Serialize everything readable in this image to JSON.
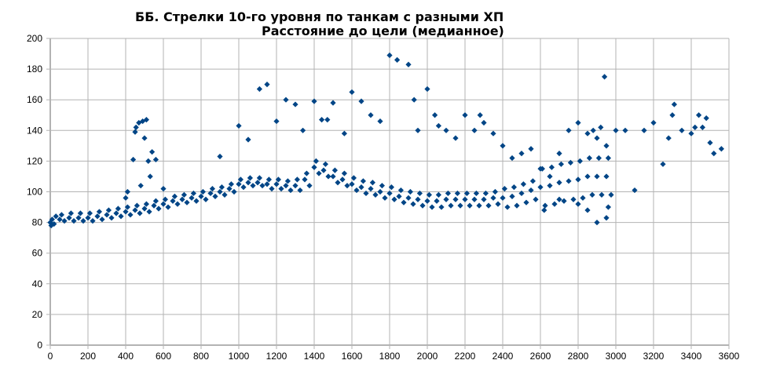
{
  "chart_data": {
    "type": "scatter",
    "title": "ББ. Стрелки 10-го уровня по танкам с разными ХП",
    "subtitle": "Расстояние до цели  (медианное)",
    "xlabel": "",
    "ylabel": "",
    "xlim": [
      0,
      3600
    ],
    "ylim": [
      0,
      200
    ],
    "xticks": [
      "0",
      "200",
      "400",
      "600",
      "800",
      "1000",
      "1200",
      "1400",
      "1600",
      "1800",
      "2000",
      "2200",
      "2400",
      "2600",
      "2800",
      "3000",
      "3200",
      "3400",
      "3600"
    ],
    "yticks": [
      "0",
      "20",
      "40",
      "60",
      "80",
      "100",
      "120",
      "140",
      "160",
      "180",
      "200"
    ],
    "grid": true,
    "legend": "none",
    "marker": "diamond",
    "color": "#004586",
    "series": [
      {
        "name": "Расстояние до цели",
        "points": [
          [
            0,
            80
          ],
          [
            5,
            78
          ],
          [
            10,
            82
          ],
          [
            20,
            79
          ],
          [
            30,
            84
          ],
          [
            50,
            82
          ],
          [
            60,
            85
          ],
          [
            75,
            81
          ],
          [
            100,
            83
          ],
          [
            110,
            86
          ],
          [
            125,
            81
          ],
          [
            150,
            83
          ],
          [
            160,
            86
          ],
          [
            175,
            81
          ],
          [
            200,
            83
          ],
          [
            210,
            86
          ],
          [
            225,
            81
          ],
          [
            250,
            84
          ],
          [
            260,
            87
          ],
          [
            275,
            82
          ],
          [
            300,
            85
          ],
          [
            310,
            88
          ],
          [
            325,
            83
          ],
          [
            350,
            86
          ],
          [
            360,
            89
          ],
          [
            375,
            84
          ],
          [
            400,
            87
          ],
          [
            410,
            90
          ],
          [
            425,
            85
          ],
          [
            450,
            88
          ],
          [
            460,
            91
          ],
          [
            475,
            86
          ],
          [
            500,
            89
          ],
          [
            510,
            92
          ],
          [
            525,
            87
          ],
          [
            550,
            91
          ],
          [
            560,
            94
          ],
          [
            575,
            89
          ],
          [
            600,
            92
          ],
          [
            610,
            95
          ],
          [
            625,
            90
          ],
          [
            650,
            94
          ],
          [
            660,
            97
          ],
          [
            675,
            92
          ],
          [
            700,
            95
          ],
          [
            710,
            98
          ],
          [
            725,
            93
          ],
          [
            750,
            96
          ],
          [
            760,
            99
          ],
          [
            775,
            94
          ],
          [
            800,
            97
          ],
          [
            810,
            100
          ],
          [
            825,
            95
          ],
          [
            850,
            99
          ],
          [
            860,
            102
          ],
          [
            875,
            97
          ],
          [
            900,
            100
          ],
          [
            910,
            103
          ],
          [
            925,
            98
          ],
          [
            950,
            102
          ],
          [
            960,
            105
          ],
          [
            975,
            100
          ],
          [
            1000,
            105
          ],
          [
            1010,
            108
          ],
          [
            1025,
            103
          ],
          [
            1050,
            106
          ],
          [
            1060,
            109
          ],
          [
            1075,
            104
          ],
          [
            1100,
            106
          ],
          [
            1110,
            109
          ],
          [
            1125,
            104
          ],
          [
            1150,
            105
          ],
          [
            1160,
            108
          ],
          [
            1175,
            102
          ],
          [
            1200,
            105
          ],
          [
            1210,
            108
          ],
          [
            1225,
            102
          ],
          [
            1250,
            104
          ],
          [
            1260,
            107
          ],
          [
            1275,
            101
          ],
          [
            1300,
            104
          ],
          [
            1310,
            108
          ],
          [
            1325,
            101
          ],
          [
            1350,
            108
          ],
          [
            1360,
            112
          ],
          [
            1375,
            104
          ],
          [
            1400,
            116
          ],
          [
            1410,
            120
          ],
          [
            1425,
            112
          ],
          [
            1450,
            114
          ],
          [
            1460,
            118
          ],
          [
            1475,
            110
          ],
          [
            1500,
            110
          ],
          [
            1510,
            114
          ],
          [
            1525,
            106
          ],
          [
            1550,
            108
          ],
          [
            1560,
            112
          ],
          [
            1575,
            104
          ],
          [
            1600,
            105
          ],
          [
            1610,
            109
          ],
          [
            1625,
            101
          ],
          [
            1650,
            103
          ],
          [
            1660,
            107
          ],
          [
            1675,
            99
          ],
          [
            1700,
            102
          ],
          [
            1710,
            106
          ],
          [
            1725,
            98
          ],
          [
            1750,
            100
          ],
          [
            1760,
            104
          ],
          [
            1775,
            96
          ],
          [
            1800,
            99
          ],
          [
            1810,
            103
          ],
          [
            1825,
            95
          ],
          [
            1850,
            97
          ],
          [
            1860,
            101
          ],
          [
            1875,
            93
          ],
          [
            1900,
            96
          ],
          [
            1910,
            100
          ],
          [
            1925,
            92
          ],
          [
            1950,
            95
          ],
          [
            1960,
            99
          ],
          [
            1975,
            91
          ],
          [
            2000,
            94
          ],
          [
            2010,
            98
          ],
          [
            2025,
            90
          ],
          [
            2050,
            94
          ],
          [
            2060,
            98
          ],
          [
            2075,
            90
          ],
          [
            2100,
            95
          ],
          [
            2110,
            99
          ],
          [
            2125,
            91
          ],
          [
            2150,
            95
          ],
          [
            2160,
            99
          ],
          [
            2175,
            91
          ],
          [
            2200,
            95
          ],
          [
            2210,
            99
          ],
          [
            2225,
            91
          ],
          [
            2250,
            95
          ],
          [
            2260,
            99
          ],
          [
            2275,
            91
          ],
          [
            2300,
            95
          ],
          [
            2310,
            99
          ],
          [
            2325,
            91
          ],
          [
            2350,
            96
          ],
          [
            2360,
            100
          ],
          [
            2375,
            92
          ],
          [
            2400,
            96
          ],
          [
            2410,
            102
          ],
          [
            2425,
            90
          ],
          [
            2450,
            97
          ],
          [
            2460,
            103
          ],
          [
            2475,
            91
          ],
          [
            2500,
            99
          ],
          [
            2510,
            105
          ],
          [
            2525,
            93
          ],
          [
            2550,
            101
          ],
          [
            2560,
            107
          ],
          [
            2575,
            95
          ],
          [
            2600,
            103
          ],
          [
            2610,
            115
          ],
          [
            2625,
            91
          ],
          [
            2650,
            104
          ],
          [
            2660,
            116
          ],
          [
            2675,
            92
          ],
          [
            2700,
            106
          ],
          [
            2710,
            118
          ],
          [
            2725,
            94
          ],
          [
            2750,
            107
          ],
          [
            2760,
            119
          ],
          [
            2775,
            95
          ],
          [
            2800,
            108
          ],
          [
            2810,
            120
          ],
          [
            2825,
            96
          ],
          [
            2850,
            110
          ],
          [
            2860,
            122
          ],
          [
            2875,
            98
          ],
          [
            2900,
            110
          ],
          [
            2910,
            122
          ],
          [
            2925,
            98
          ],
          [
            2950,
            110
          ],
          [
            2960,
            122
          ],
          [
            2975,
            98
          ],
          [
            400,
            96
          ],
          [
            410,
            100
          ],
          [
            440,
            121
          ],
          [
            450,
            139
          ],
          [
            455,
            142
          ],
          [
            470,
            145
          ],
          [
            480,
            104
          ],
          [
            490,
            146
          ],
          [
            500,
            135
          ],
          [
            510,
            147
          ],
          [
            520,
            120
          ],
          [
            530,
            110
          ],
          [
            540,
            126
          ],
          [
            560,
            121
          ],
          [
            600,
            102
          ],
          [
            900,
            123
          ],
          [
            1000,
            143
          ],
          [
            1050,
            134
          ],
          [
            1110,
            167
          ],
          [
            1150,
            170
          ],
          [
            1200,
            146
          ],
          [
            1250,
            160
          ],
          [
            1300,
            157
          ],
          [
            1340,
            140
          ],
          [
            1400,
            159
          ],
          [
            1440,
            147
          ],
          [
            1470,
            147
          ],
          [
            1500,
            158
          ],
          [
            1560,
            138
          ],
          [
            1600,
            165
          ],
          [
            1650,
            159
          ],
          [
            1700,
            150
          ],
          [
            1750,
            146
          ],
          [
            1800,
            189
          ],
          [
            1840,
            186
          ],
          [
            1900,
            183
          ],
          [
            1930,
            160
          ],
          [
            1950,
            140
          ],
          [
            2000,
            167
          ],
          [
            2040,
            150
          ],
          [
            2060,
            143
          ],
          [
            2100,
            140
          ],
          [
            2150,
            135
          ],
          [
            2200,
            150
          ],
          [
            2250,
            140
          ],
          [
            2280,
            150
          ],
          [
            2300,
            145
          ],
          [
            2350,
            138
          ],
          [
            2400,
            130
          ],
          [
            2450,
            122
          ],
          [
            2500,
            125
          ],
          [
            2550,
            128
          ],
          [
            2600,
            115
          ],
          [
            2650,
            110
          ],
          [
            2700,
            125
          ],
          [
            2750,
            140
          ],
          [
            2800,
            145
          ],
          [
            2850,
            138
          ],
          [
            2880,
            140
          ],
          [
            2900,
            135
          ],
          [
            2920,
            142
          ],
          [
            2940,
            175
          ],
          [
            2950,
            130
          ],
          [
            2960,
            90
          ],
          [
            2900,
            80
          ],
          [
            2950,
            83
          ],
          [
            3000,
            140
          ],
          [
            3050,
            140
          ],
          [
            3100,
            101
          ],
          [
            3150,
            140
          ],
          [
            3200,
            145
          ],
          [
            3250,
            118
          ],
          [
            3280,
            135
          ],
          [
            3300,
            150
          ],
          [
            3310,
            157
          ],
          [
            3350,
            140
          ],
          [
            3400,
            138
          ],
          [
            3420,
            142
          ],
          [
            3440,
            150
          ],
          [
            3460,
            142
          ],
          [
            3480,
            148
          ],
          [
            3500,
            132
          ],
          [
            3520,
            125
          ],
          [
            3560,
            128
          ],
          [
            2850,
            88
          ],
          [
            2800,
            92
          ],
          [
            2700,
            95
          ],
          [
            2620,
            88
          ]
        ]
      }
    ]
  }
}
